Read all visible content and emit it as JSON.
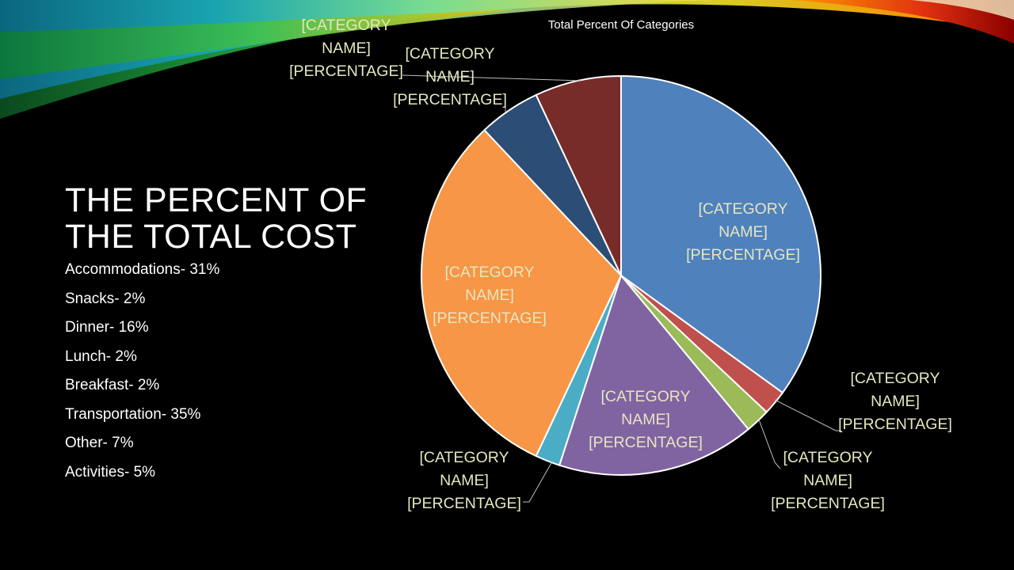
{
  "slide": {
    "title_line1": "THE PERCENT OF",
    "title_line2": "THE TOTAL COST",
    "breakdown": [
      "Accommodations- 31%",
      "Snacks- 2%",
      "Dinner- 16%",
      "Lunch- 2%",
      "Breakfast- 2%",
      "Transportation-  35%",
      "Other- 7%",
      "Activities- 5%"
    ]
  },
  "colors": {
    "background": "#000000",
    "text": "#ffffff",
    "label_text": "#e6e6bf",
    "slice_border": "#ffffff"
  },
  "chart_data": {
    "type": "pie",
    "title": "Total Percent Of Categories",
    "start_angle_deg": 0,
    "direction": "clockwise",
    "slices": [
      {
        "value": 35,
        "color": "#4f81bd",
        "label": [
          "[CATEGORY",
          "NAME]",
          "[PERCENTAGE]"
        ],
        "label_placement": "inside"
      },
      {
        "value": 2,
        "color": "#c0504d",
        "label": [
          "[CATEGORY",
          "NAME]",
          "[PERCENTAGE]"
        ],
        "label_placement": "outside"
      },
      {
        "value": 2,
        "color": "#9bbb59",
        "label": [
          "[CATEGORY",
          "NAME]",
          "[PERCENTAGE]"
        ],
        "label_placement": "outside"
      },
      {
        "value": 16,
        "color": "#8064a2",
        "label": [
          "[CATEGORY",
          "NAME]",
          "[PERCENTAGE]"
        ],
        "label_placement": "inside"
      },
      {
        "value": 2,
        "color": "#4bacc6",
        "label": [
          "[CATEGORY",
          "NAME]",
          "[PERCENTAGE]"
        ],
        "label_placement": "outside"
      },
      {
        "value": 31,
        "color": "#f79646",
        "label": [
          "[CATEGORY",
          "NAME]",
          "[PERCENTAGE]"
        ],
        "label_placement": "inside"
      },
      {
        "value": 5,
        "color": "#2c4d75",
        "label": [
          "[CATEGORY",
          "NAME]",
          "[PERCENTAGE]"
        ],
        "label_placement": "outside"
      },
      {
        "value": 7,
        "color": "#772c2a",
        "label": [
          "[CATEGORY",
          "NAME]",
          "[PERCENTAGE]"
        ],
        "label_placement": "outside"
      }
    ]
  }
}
